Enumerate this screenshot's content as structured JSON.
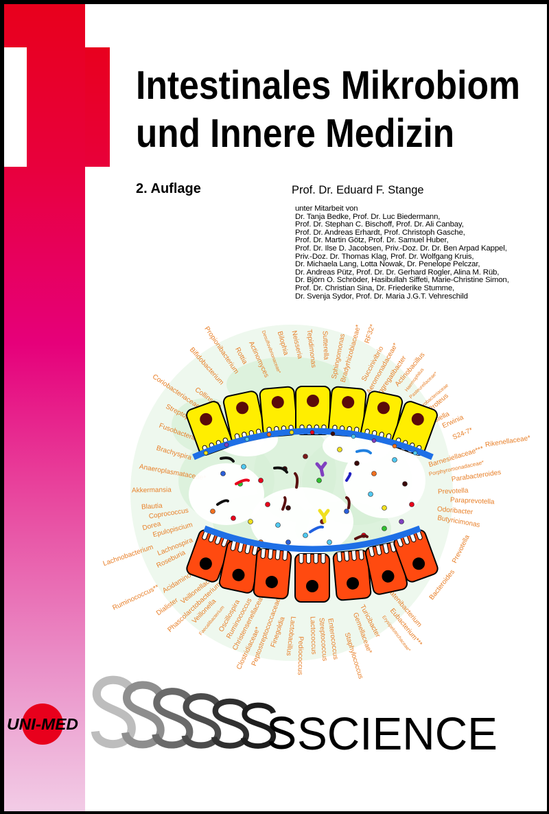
{
  "cover": {
    "title_line1": "Intestinales Mikrobiom",
    "title_line2": "und Innere Medizin",
    "edition": "2. Auflage",
    "author": "Prof. Dr. Eduard F. Stange",
    "contributors_intro": "unter Mitarbeit von",
    "contributors": [
      "Dr. Tanja Bedke, Prof. Dr. Luc Biedermann,",
      "Prof. Dr. Stephan C. Bischoff, Prof. Dr. Ali Canbay,",
      "Prof. Dr. Andreas Erhardt, Prof. Christoph Gasche,",
      "Prof. Dr. Martin Götz, Prof. Dr. Samuel Huber,",
      "Prof. Dr. Ilse D. Jacobsen, Priv.-Doz. Dr. Dr. Ben Arpad Kappel,",
      "Priv.-Doz. Dr. Thomas Klag, Prof. Dr. Wolfgang Kruis,",
      "Dr. Michaela Lang, Lotta Nowak, Dr. Penelope Pelczar,",
      "Dr. Andreas Pütz, Prof. Dr. Dr. Gerhard Rogler, Alina M. Rüb,",
      "Dr. Björn O. Schröder, Hasibullah Siffeti, Marie-Christine Simon,",
      "Prof. Dr. Christian Sina, Dr. Friederike Stumme,",
      "Dr. Svenja Sydor, Prof. Dr. Maria J.G.T. Vehreschild"
    ],
    "publisher_logo": "UNI-MED",
    "series_name": "SCIENCE",
    "series_s_letter": "S"
  },
  "illustration": {
    "label_color": "#e8802a",
    "labels": [
      "Propionibacterium",
      "Bifidobacterium",
      "Rottia",
      "Actinomyces",
      "Desulfovibrionaceae*",
      "Bilophia",
      "Neisseria",
      "Tepidimonas",
      "Sutterella",
      "Sphingomonas",
      "Bradyrhizobiaceae*",
      "RF32*",
      "Succinivibrio",
      "Aeromonadaceae*",
      "Aggregatibacter",
      "Actinobacillus",
      "Haemophilus",
      "Pasteurellaceae*",
      "Enterobacteriaceae",
      "Proteus",
      "Klebsiella",
      "Erwinia",
      "S24-7*",
      "Rikenellaceae*",
      "Barnesiellaceae***",
      "Porphyromonadaceae*",
      "Parabacteroides",
      "Prevotella",
      "Paraprevotella",
      "Odoribacter",
      "Butyricimonas",
      "Prevotella",
      "Bacteroides",
      "Catenibacterium",
      "Eubacterium***",
      "Erysipelotrichaceae*",
      "Turicibacter",
      "Gemellaceae*",
      "Staphylococcus",
      "Enterococcus",
      "Streptococcus",
      "Lactococcus",
      "Pediococcus",
      "Lactobacillus",
      "Finegoldia",
      "Peptostreptococcaceae*",
      "Clostridiaceae*",
      "Christensenellaceae",
      "Ruminococcus",
      "Oscillospira",
      "Faecalibacterium",
      "Veillonella",
      "Phascolarctobacterium",
      "Veillonellaceae",
      "Dialister",
      "Acidaminococcus",
      "Ruminococcus**",
      "Roseburia",
      "Lachnospira",
      "Lachnobacterium",
      "Epulopiscium",
      "Dorea",
      "Coprococcus",
      "Blautia",
      "Akkermansia",
      "Anaeroplasmataceae*",
      "Brachyspira",
      "Fusobacterium",
      "Streptophyta",
      "Coriobacteriaceae*",
      "Collinsella"
    ]
  },
  "colors": {
    "brand_red": "#e8001c",
    "magenta": "#e6007a",
    "villus_yellow": "#ffee00",
    "crypt_red": "#ff4a10",
    "mucus_blue": "#1e6fe6"
  }
}
